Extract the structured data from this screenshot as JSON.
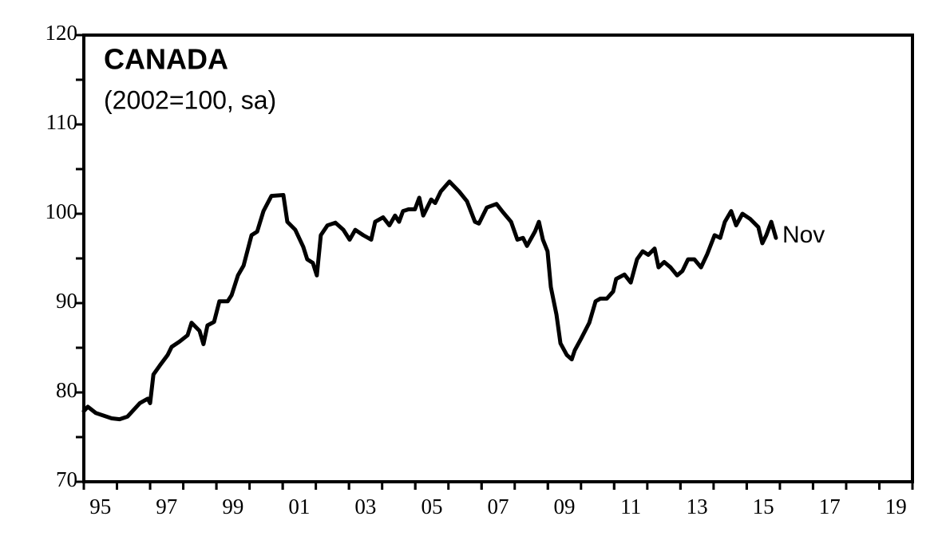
{
  "chart_data": {
    "type": "line",
    "title": "CANADA",
    "subtitle": "(2002=100, sa)",
    "annotation": "Nov",
    "xlim": [
      1995,
      2020
    ],
    "xticks": [
      {
        "value": 1995,
        "label": "95"
      },
      {
        "value": 1997,
        "label": "97"
      },
      {
        "value": 1999,
        "label": "99"
      },
      {
        "value": 2001,
        "label": "01"
      },
      {
        "value": 2003,
        "label": "03"
      },
      {
        "value": 2005,
        "label": "05"
      },
      {
        "value": 2007,
        "label": "07"
      },
      {
        "value": 2009,
        "label": "09"
      },
      {
        "value": 2011,
        "label": "11"
      },
      {
        "value": 2013,
        "label": "13"
      },
      {
        "value": 2015,
        "label": "15"
      },
      {
        "value": 2017,
        "label": "17"
      },
      {
        "value": 2019,
        "label": "19"
      }
    ],
    "ylim": [
      70,
      120
    ],
    "yticks": [
      70,
      80,
      90,
      100,
      110,
      120
    ],
    "series": [
      {
        "name": "Canada",
        "color": "#000000",
        "x": [
          1995.0,
          1995.12,
          1995.36,
          1995.6,
          1995.84,
          1996.08,
          1996.32,
          1996.69,
          1996.93,
          1997.0,
          1997.1,
          1997.29,
          1997.53,
          1997.65,
          1997.89,
          1998.13,
          1998.25,
          1998.49,
          1998.61,
          1998.73,
          1998.93,
          1999.09,
          1999.34,
          1999.46,
          1999.65,
          1999.82,
          2000.06,
          2000.23,
          2000.42,
          2000.66,
          2001.02,
          2001.14,
          2001.38,
          2001.62,
          2001.74,
          2001.91,
          2002.03,
          2002.15,
          2002.35,
          2002.59,
          2002.83,
          2003.02,
          2003.19,
          2003.43,
          2003.67,
          2003.79,
          2004.03,
          2004.22,
          2004.39,
          2004.51,
          2004.63,
          2004.8,
          2004.99,
          2005.12,
          2005.24,
          2005.48,
          2005.6,
          2005.77,
          2006.03,
          2006.32,
          2006.56,
          2006.8,
          2006.92,
          2007.16,
          2007.45,
          2007.64,
          2007.89,
          2008.08,
          2008.25,
          2008.37,
          2008.61,
          2008.73,
          2008.85,
          2008.99,
          2009.09,
          2009.26,
          2009.38,
          2009.57,
          2009.72,
          2009.81,
          2010.0,
          2010.25,
          2010.44,
          2010.58,
          2010.78,
          2010.97,
          2011.06,
          2011.31,
          2011.5,
          2011.69,
          2011.86,
          2012.03,
          2012.22,
          2012.34,
          2012.51,
          2012.7,
          2012.9,
          2013.06,
          2013.23,
          2013.42,
          2013.62,
          2013.81,
          2014.03,
          2014.2,
          2014.34,
          2014.53,
          2014.68,
          2014.87,
          2015.11,
          2015.35,
          2015.47,
          2015.59,
          2015.74,
          2015.88
        ],
        "values": [
          77.9,
          78.4,
          77.7,
          77.4,
          77.1,
          77.0,
          77.3,
          78.8,
          79.3,
          78.8,
          82.0,
          83.0,
          84.2,
          85.1,
          85.7,
          86.4,
          87.8,
          86.9,
          85.4,
          87.5,
          87.9,
          90.2,
          90.2,
          90.9,
          93.1,
          94.2,
          97.6,
          98.0,
          100.3,
          102.0,
          102.1,
          99.1,
          98.2,
          96.3,
          94.9,
          94.5,
          93.1,
          97.6,
          98.7,
          99.0,
          98.2,
          97.1,
          98.2,
          97.6,
          97.1,
          99.1,
          99.6,
          98.7,
          99.8,
          99.1,
          100.3,
          100.5,
          100.5,
          101.8,
          99.8,
          101.6,
          101.2,
          102.5,
          103.6,
          102.5,
          101.4,
          99.1,
          98.9,
          100.7,
          101.1,
          100.2,
          99.1,
          97.1,
          97.3,
          96.4,
          98.0,
          99.1,
          97.1,
          95.8,
          91.8,
          88.7,
          85.5,
          84.2,
          83.7,
          84.7,
          86.0,
          87.8,
          90.2,
          90.5,
          90.5,
          91.3,
          92.7,
          93.2,
          92.3,
          94.9,
          95.8,
          95.4,
          96.1,
          94.0,
          94.6,
          94.0,
          93.1,
          93.6,
          94.9,
          94.9,
          94.0,
          95.5,
          97.6,
          97.3,
          99.1,
          100.3,
          98.7,
          100.0,
          99.4,
          98.5,
          96.7,
          97.6,
          99.1,
          97.3
        ]
      }
    ]
  }
}
